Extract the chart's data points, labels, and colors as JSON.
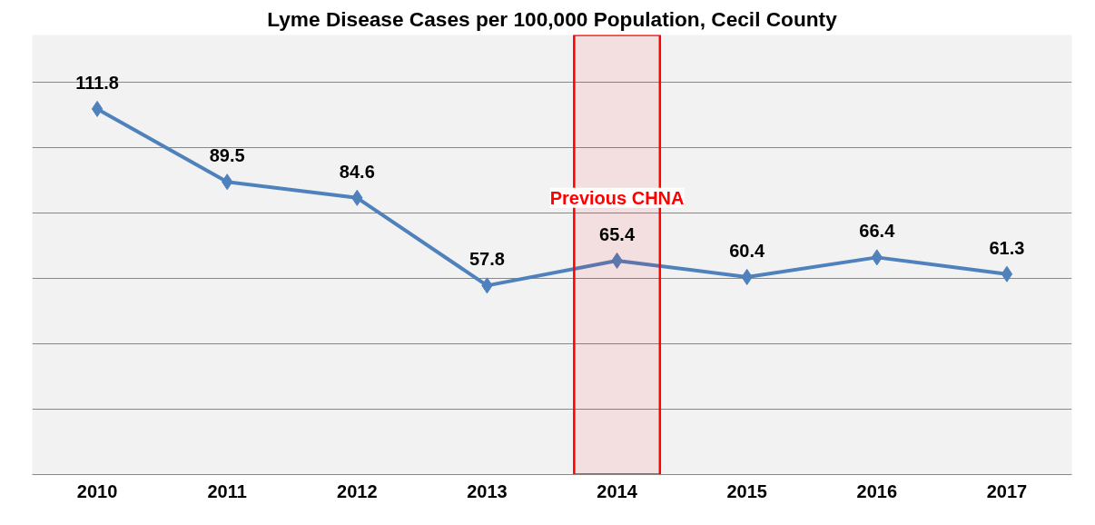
{
  "chart_data": {
    "type": "line",
    "title": "Lyme Disease Cases per 100,000 Population, Cecil County",
    "categories": [
      "2010",
      "2011",
      "2012",
      "2013",
      "2014",
      "2015",
      "2016",
      "2017"
    ],
    "series": [
      {
        "color": "#4f81bd",
        "values": [
          111.8,
          89.5,
          84.6,
          57.8,
          65.4,
          60.4,
          66.4,
          61.3
        ]
      }
    ],
    "ylim": [
      0,
      120
    ],
    "yticks": [
      {
        "value": 0,
        "label": null
      },
      {
        "value": 20,
        "label": null
      },
      {
        "value": 40,
        "label": null
      },
      {
        "value": 60,
        "label": null
      },
      {
        "value": 80,
        "label": null
      },
      {
        "value": 100,
        "label": null
      },
      {
        "value": 120,
        "label": null
      }
    ],
    "tick_labels": "x",
    "grid": "y",
    "marker": "diamond",
    "data_labels": true,
    "bands": [
      {
        "axis": "x",
        "from": "2014",
        "to": "2014",
        "label": "Previous CHNA",
        "color": "#ff0000"
      }
    ]
  }
}
